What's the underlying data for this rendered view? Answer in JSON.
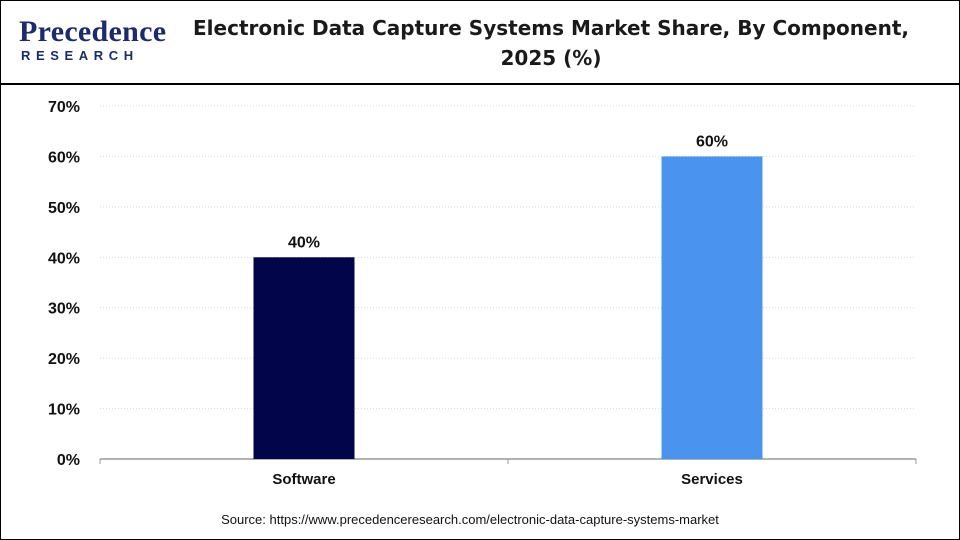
{
  "brand": {
    "logo_main": "Precedence",
    "logo_sub": "RESEARCH"
  },
  "colors": {
    "software": "#03054a",
    "services": "#4a94ef",
    "brand": "#1d2a6b"
  },
  "chart_data": {
    "type": "bar",
    "title": "Electronic Data Capture Systems Market Share, By Component, 2025 (%)",
    "categories": [
      "Software",
      "Services"
    ],
    "values": [
      40,
      60
    ],
    "data_labels": [
      "40%",
      "60%"
    ],
    "y_ticks": [
      "0%",
      "10%",
      "20%",
      "30%",
      "40%",
      "50%",
      "60%",
      "70%"
    ],
    "ylim": [
      0,
      70
    ],
    "xlabel": "",
    "ylabel": "",
    "grid": true,
    "legend": "none"
  },
  "source": "Source: https://www.precedenceresearch.com/electronic-data-capture-systems-market"
}
